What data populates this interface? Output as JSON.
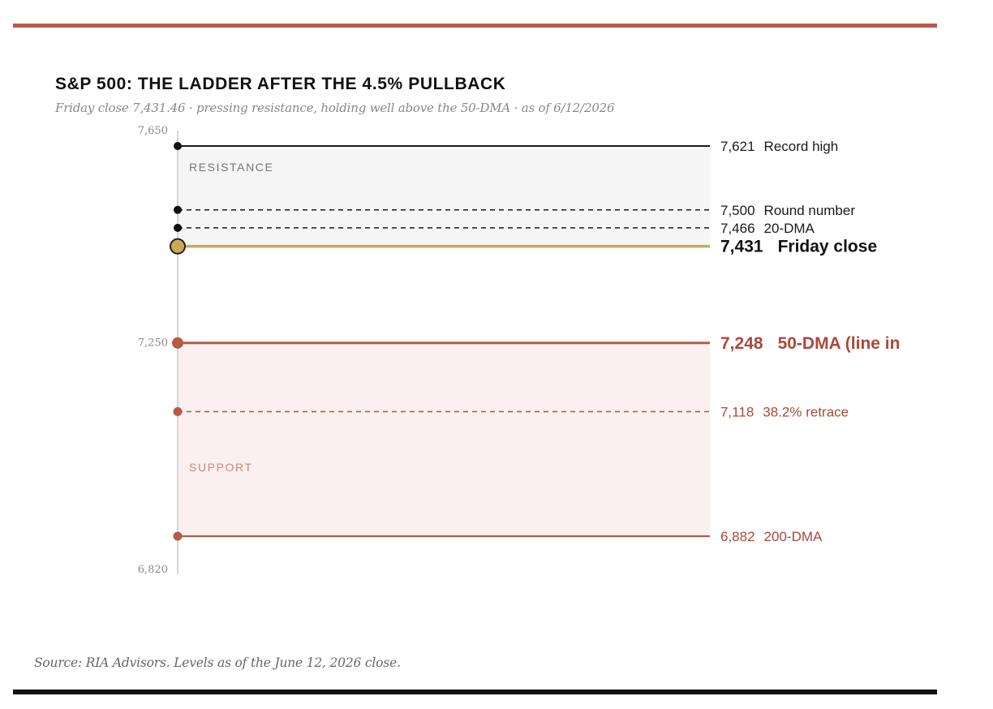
{
  "header": {
    "title": "S&P 500: THE LADDER AFTER THE 4.5% PULLBACK",
    "subtitle": "Friday close 7,431.46 · pressing resistance, holding well above the 50-DMA · as of 6/12/2026"
  },
  "footer": {
    "source": "Source: RIA Advisors. Levels as of the June 12, 2026 close."
  },
  "colors": {
    "accent_rule": "#b85a48",
    "resistance_line": "#1a1a1a",
    "resistance_zone": "#f5f5f5",
    "close_line": "#ccaa55",
    "support_line": "#b85a48",
    "support_zone": "#f9f0ef",
    "axis": "#d6d6d6"
  },
  "chart_data": {
    "type": "line",
    "title": "S&P 500: THE LADDER AFTER THE 4.5% PULLBACK",
    "ylim": [
      6820,
      7650
    ],
    "y_ticks": [
      {
        "value": 7650,
        "label": "7,650"
      },
      {
        "value": 7250,
        "label": "7,250"
      },
      {
        "value": 6820,
        "label": "6,820"
      }
    ],
    "zones": [
      {
        "name": "RESISTANCE",
        "from": 7431,
        "to": 7621
      },
      {
        "name": "SUPPORT",
        "from": 6882,
        "to": 7248
      }
    ],
    "levels": [
      {
        "value": 7621,
        "value_label": "7,621",
        "name": "Record high",
        "kind": "resistance",
        "style": "solid",
        "emphasis": false
      },
      {
        "value": 7500,
        "value_label": "7,500",
        "name": "Round number",
        "kind": "resistance",
        "style": "dashed",
        "emphasis": false
      },
      {
        "value": 7466,
        "value_label": "7,466",
        "name": "20-DMA",
        "kind": "resistance",
        "style": "dashed",
        "emphasis": false
      },
      {
        "value": 7431,
        "value_label": "7,431",
        "name": "Friday close",
        "kind": "close",
        "style": "solid",
        "emphasis": true
      },
      {
        "value": 7248,
        "value_label": "7,248",
        "name": "50-DMA (line in",
        "kind": "support",
        "style": "solid",
        "emphasis": true
      },
      {
        "value": 7118,
        "value_label": "7,118",
        "name": "38.2% retrace",
        "kind": "support",
        "style": "dashed",
        "emphasis": false
      },
      {
        "value": 6882,
        "value_label": "6,882",
        "name": "200-DMA",
        "kind": "support",
        "style": "solid",
        "emphasis": false
      }
    ]
  }
}
